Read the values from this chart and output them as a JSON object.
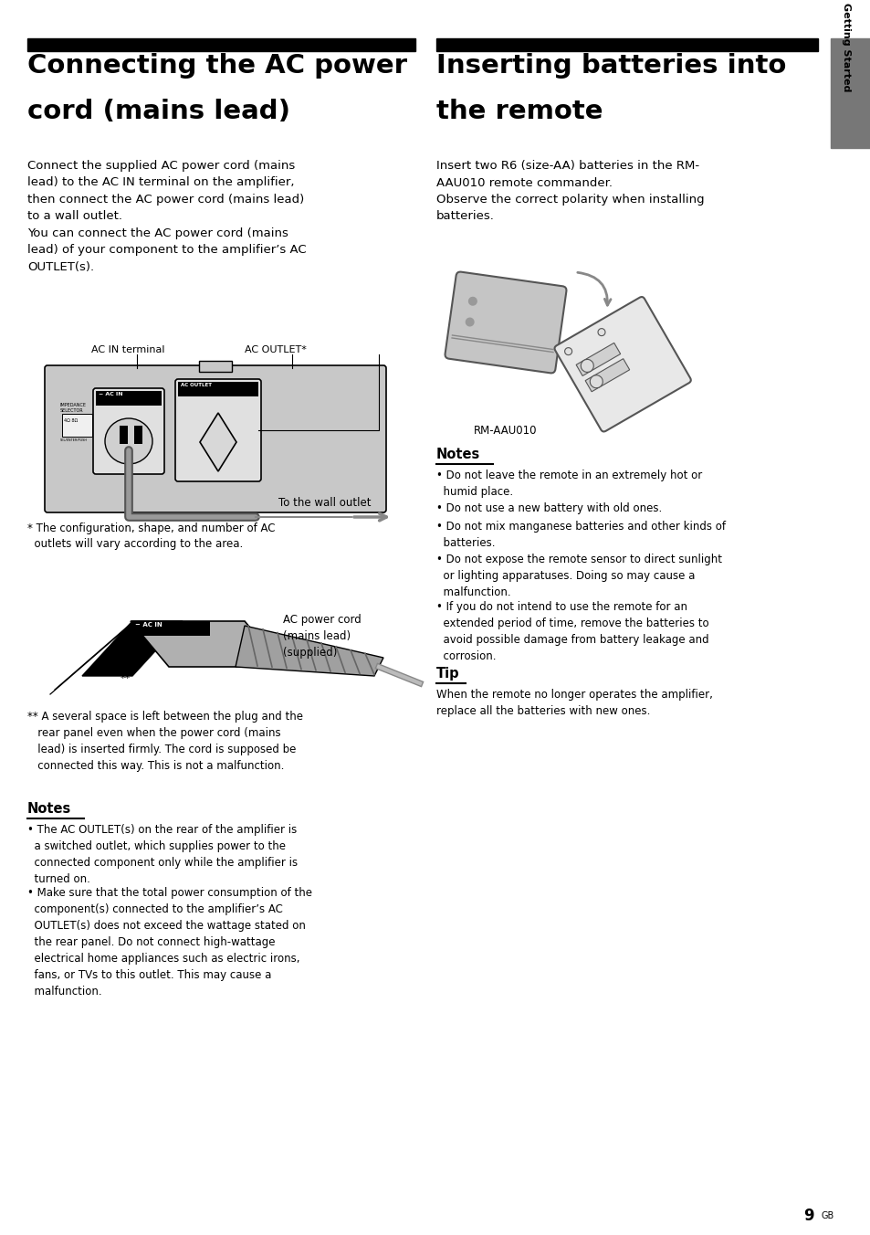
{
  "bg_color": "#ffffff",
  "page_width": 9.54,
  "page_height": 13.52,
  "section1_title_line1": "Connecting the AC power",
  "section1_title_line2": "cord (mains lead)",
  "section2_title_line1": "Inserting batteries into",
  "section2_title_line2": "the remote",
  "sidebar_text": "Getting Started",
  "section1_body": "Connect the supplied AC power cord (mains\nlead) to the AC IN terminal on the amplifier,\nthen connect the AC power cord (mains lead)\nto a wall outlet.\nYou can connect the AC power cord (mains\nlead) of your component to the amplifier’s AC\nOUTLET(s).",
  "section2_body": "Insert two R6 (size-AA) batteries in the RM-\nAAU010 remote commander.\nObserve the correct polarity when installing\nbatteries.",
  "label_ac_in": "AC IN terminal",
  "label_ac_outlet": "AC OUTLET*",
  "label_wall": "To the wall outlet",
  "label_ac_cord": "AC power cord\n(mains lead)\n(supplied)",
  "footnote1": "* The configuration, shape, and number of AC\n  outlets will vary according to the area.",
  "footnote2_star": "**",
  "footnote2_text": " A several space is left between the plug and the\n   rear panel even when the power cord (mains\n   lead) is inserted firmly. The cord is supposed be\n   connected this way. This is not a malfunction.",
  "notes1_title": "Notes",
  "notes1_bullets": [
    "• The AC OUTLET(s) on the rear of the amplifier is\n  a switched outlet, which supplies power to the\n  connected component only while the amplifier is\n  turned on.",
    "• Make sure that the total power consumption of the\n  component(s) connected to the amplifier’s AC\n  OUTLET(s) does not exceed the wattage stated on\n  the rear panel. Do not connect high-wattage\n  electrical home appliances such as electric irons,\n  fans, or TVs to this outlet. This may cause a\n  malfunction."
  ],
  "rm_label": "RM-AAU010",
  "notes2_title": "Notes",
  "notes2_bullets": [
    "• Do not leave the remote in an extremely hot or\n  humid place.",
    "• Do not use a new battery with old ones.",
    "• Do not mix manganese batteries and other kinds of\n  batteries.",
    "• Do not expose the remote sensor to direct sunlight\n  or lighting apparatuses. Doing so may cause a\n  malfunction.",
    "• If you do not intend to use the remote for an\n  extended period of time, remove the batteries to\n  avoid possible damage from battery leakage and\n  corrosion."
  ],
  "tip_title": "Tip",
  "tip_body": "When the remote no longer operates the amplifier,\nreplace all the batteries with new ones.",
  "page_num": "9",
  "page_suffix": "GB"
}
